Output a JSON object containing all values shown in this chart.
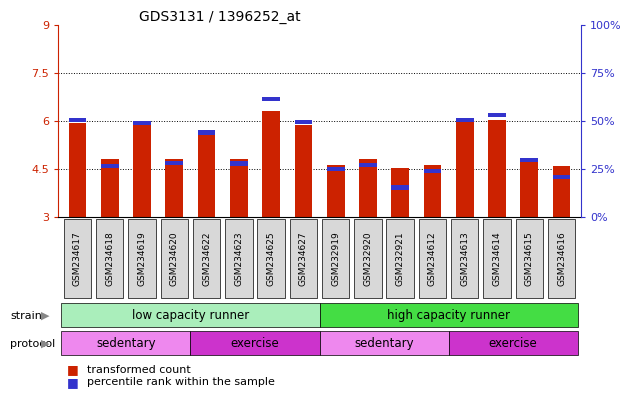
{
  "title": "GDS3131 / 1396252_at",
  "samples": [
    "GSM234617",
    "GSM234618",
    "GSM234619",
    "GSM234620",
    "GSM234622",
    "GSM234623",
    "GSM234625",
    "GSM234627",
    "GSM232919",
    "GSM232920",
    "GSM232921",
    "GSM234612",
    "GSM234613",
    "GSM234614",
    "GSM234615",
    "GSM234616"
  ],
  "red_values": [
    5.92,
    4.82,
    5.87,
    4.82,
    5.72,
    4.82,
    6.32,
    5.87,
    4.62,
    4.82,
    4.52,
    4.62,
    5.97,
    6.02,
    4.82,
    4.6
  ],
  "blue_values": [
    5.97,
    4.52,
    5.87,
    4.62,
    5.57,
    4.6,
    6.62,
    5.9,
    4.42,
    4.55,
    3.85,
    4.37,
    5.97,
    6.12,
    4.72,
    4.18
  ],
  "ymin": 3.0,
  "ymax": 9.0,
  "yticks_left": [
    3,
    4.5,
    6,
    7.5,
    9
  ],
  "ytick_labels_left": [
    "3",
    "4.5",
    "6",
    "7.5",
    "9"
  ],
  "right_tick_positions": [
    3.0,
    4.5,
    6.0,
    7.5,
    9.0
  ],
  "ytick_labels_right": [
    "0%",
    "25%",
    "50%",
    "75%",
    "100%"
  ],
  "bar_color": "#cc2200",
  "blue_color": "#3333cc",
  "grid_color": "#000000",
  "strain_labels": [
    "low capacity runner",
    "high capacity runner"
  ],
  "strain_color_low": "#aaeebb",
  "strain_color_high": "#44dd44",
  "protocol_labels": [
    "sedentary",
    "exercise",
    "sedentary",
    "exercise"
  ],
  "protocol_color_light": "#ee88ee",
  "protocol_color_dark": "#cc33cc",
  "legend_red": "transformed count",
  "legend_blue": "percentile rank within the sample",
  "bar_width": 0.55,
  "blue_bar_height": 0.13
}
